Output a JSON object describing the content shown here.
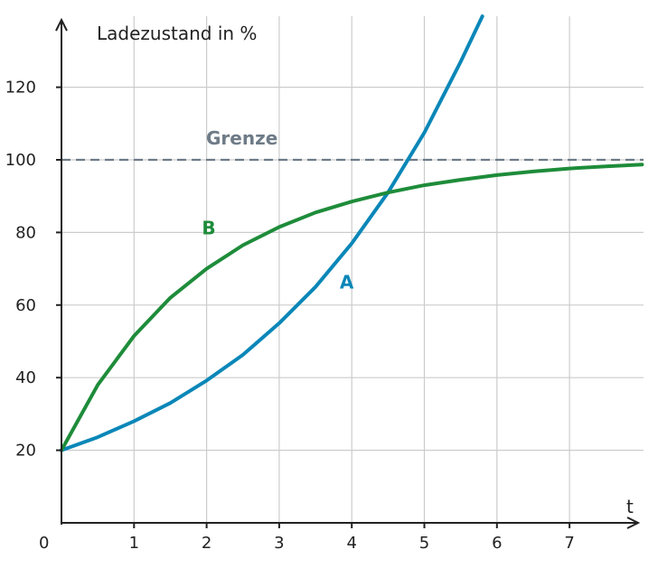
{
  "chart_data": {
    "type": "line",
    "ylabel": "Ladezustand in %",
    "xlabel": "t",
    "xlim": [
      0,
      8
    ],
    "ylim": [
      0,
      140
    ],
    "x_ticks": [
      1,
      2,
      3,
      4,
      5,
      6,
      7
    ],
    "y_ticks": [
      20,
      40,
      60,
      80,
      100,
      120
    ],
    "origin_label": "0",
    "grid": true,
    "reference_line": {
      "label": "Grenze",
      "y": 100,
      "color": "#6e7b87",
      "style": "dashed"
    },
    "series": [
      {
        "name": "A",
        "color": "#0a87b8",
        "label_at": [
          3.93,
          64.5
        ],
        "x": [
          0,
          0.5,
          1,
          1.5,
          2,
          2.5,
          3,
          3.5,
          4,
          4.5,
          5,
          5.5,
          5.8
        ],
        "y": [
          20,
          23.6,
          28,
          33,
          39.2,
          46.3,
          55,
          65,
          77,
          91,
          107.5,
          127,
          140
        ]
      },
      {
        "name": "B",
        "color": "#1e8c3a",
        "label_at": [
          2.03,
          79.5
        ],
        "x": [
          0,
          0.5,
          1,
          1.5,
          2,
          2.5,
          3,
          3.5,
          4,
          4.5,
          5,
          5.5,
          6,
          6.5,
          7,
          7.5,
          8
        ],
        "y": [
          20,
          38,
          51.5,
          62,
          70,
          76.5,
          81.5,
          85.5,
          88.5,
          91,
          93,
          94.5,
          95.8,
          96.8,
          97.6,
          98.2,
          98.7
        ]
      }
    ]
  }
}
